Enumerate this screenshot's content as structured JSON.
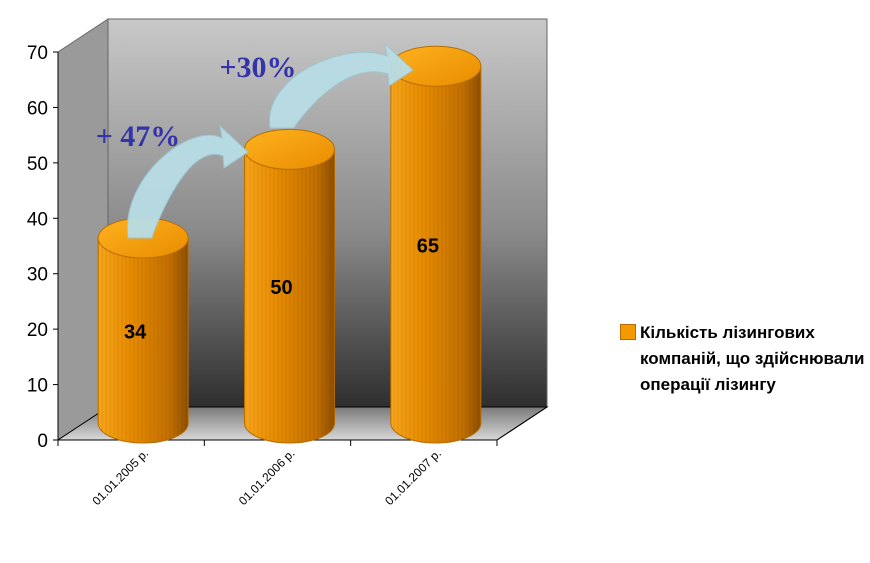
{
  "chart_data": {
    "type": "bar",
    "style": "3d-cylinder",
    "categories": [
      "01.01.2005 р.",
      "01.01.2006 р.",
      "01.01.2007 р."
    ],
    "series": [
      {
        "name": "Кількість лізингових компаній, що здійснювали операції лізингу",
        "values": [
          34,
          50,
          65
        ]
      }
    ],
    "ylim": [
      0,
      70
    ],
    "yticks": [
      0,
      10,
      20,
      30,
      40,
      50,
      60,
      70
    ],
    "annotations": [
      "+ 47%",
      "+30%"
    ],
    "legend_position": "right",
    "colors": {
      "bar": "#f29a00",
      "bar_dark": "#c26f00",
      "arrow": "#b8dde6",
      "growth_text": "#3333aa"
    }
  }
}
